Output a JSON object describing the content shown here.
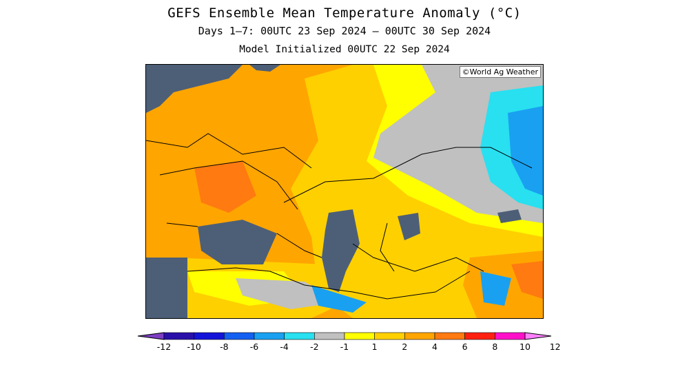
{
  "title": "GEFS Ensemble Mean Temperature Anomaly (°C)",
  "subtitle": "Days 1–7: 00UTC 23 Sep 2024 – 00UTC 30 Sep 2024",
  "init_line": "Model Initialized 00UTC 22 Sep 2024",
  "credit": "©World Ag Weather",
  "colorbar": {
    "labels": [
      "-12",
      "-10",
      "-8",
      "-6",
      "-4",
      "-2",
      "-1",
      "1",
      "2",
      "4",
      "6",
      "8",
      "10",
      "12"
    ],
    "bins": [
      {
        "color": "#7d3fc2"
      },
      {
        "color": "#2a10a8"
      },
      {
        "color": "#1414d8"
      },
      {
        "color": "#1460f0"
      },
      {
        "color": "#1aa0f0"
      },
      {
        "color": "#28e0f0"
      },
      {
        "color": "#c0c0c0"
      },
      {
        "color": "#ffff00"
      },
      {
        "color": "#ffd000"
      },
      {
        "color": "#ffa500"
      },
      {
        "color": "#ff7a10"
      },
      {
        "color": "#ff2010"
      },
      {
        "color": "#ff10c8"
      },
      {
        "color": "#ff80ff"
      }
    ]
  },
  "map_colors": {
    "water": "#4d5f77",
    "warm4_6": "#ffa500",
    "warm2_4": "#ffd000",
    "warm1_2": "#ffff00",
    "neutral": "#c0c0c0",
    "cool2_4": "#1aa0f0",
    "cool1_2": "#28e0f0",
    "hot6_8": "#ff7a10"
  }
}
